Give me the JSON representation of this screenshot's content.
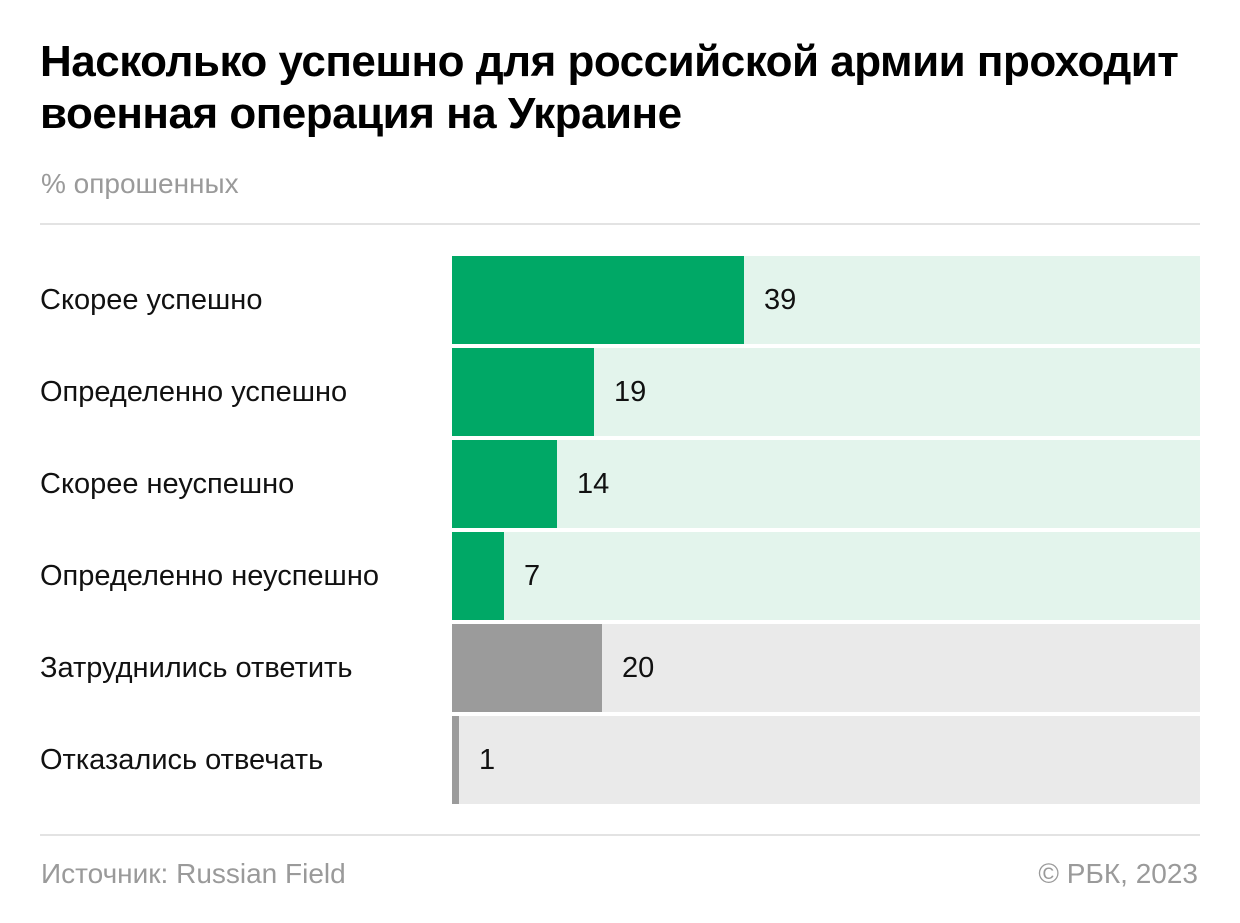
{
  "title": "Насколько успешно для российской армии проходит военная операция на Украине",
  "subtitle": "% опрошенных",
  "footer": {
    "source": "Источник: Russian Field",
    "copyright": "© РБК, 2023"
  },
  "colors": {
    "positive_bar": "#00a866",
    "positive_track": "#e3f4ec",
    "neutral_bar": "#9b9b9b",
    "neutral_track": "#eaeaea"
  },
  "chart_data": {
    "type": "bar",
    "orientation": "horizontal",
    "title": "Насколько успешно для российской армии проходит военная операция на Украине",
    "ylabel": "% опрошенных",
    "xlim": [
      0,
      100
    ],
    "categories": [
      "Скорее успешно",
      "Определенно успешно",
      "Скорее неуспешно",
      "Определенно неуспешно",
      "Затруднились ответить",
      "Отказались отвечать"
    ],
    "values": [
      39,
      19,
      14,
      7,
      20,
      1
    ],
    "value_labels": [
      "39",
      "19",
      "14",
      "7",
      "20",
      "1"
    ],
    "bar_groups": [
      "answer",
      "answer",
      "answer",
      "answer",
      "other",
      "other"
    ],
    "grid": false,
    "legend": "none"
  }
}
